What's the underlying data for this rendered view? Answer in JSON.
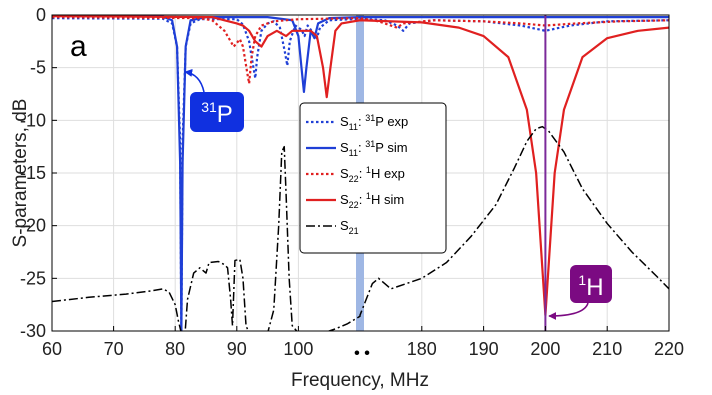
{
  "chart_data": {
    "type": "line",
    "panel_label": "a",
    "xlabel": "Frequency, MHz",
    "ylabel": "S-parameters, dB",
    "ylim": [
      -30,
      0
    ],
    "yticks": [
      "0",
      "-5",
      "-10",
      "-15",
      "-20",
      "-25",
      "-30"
    ],
    "axis_break": {
      "symbol": "• •",
      "left_segment": {
        "xlim": [
          60,
          110
        ],
        "ticks": [
          "60",
          "70",
          "80",
          "90",
          "100"
        ]
      },
      "right_segment": {
        "xlim": [
          170,
          220
        ],
        "ticks": [
          "180",
          "190",
          "200",
          "210",
          "220"
        ]
      }
    },
    "grid": true,
    "legend_position": "center",
    "series": [
      {
        "name": "S11: 31P exp",
        "legend": {
          "base": "S",
          "sub": "11",
          "sup": "31",
          "rest": "P exp"
        },
        "color": "#1f3fd6",
        "style": "dotted",
        "points": [
          [
            60,
            -0.3
          ],
          [
            78,
            -0.35
          ],
          [
            79.5,
            -0.8
          ],
          [
            80.3,
            -3
          ],
          [
            80.8,
            -12
          ],
          [
            81,
            -30
          ],
          [
            81.2,
            -12
          ],
          [
            81.7,
            -3
          ],
          [
            82.5,
            -0.8
          ],
          [
            84,
            -0.4
          ],
          [
            90,
            -0.4
          ],
          [
            91,
            -0.9
          ],
          [
            92,
            -2.5
          ],
          [
            92.7,
            -5
          ],
          [
            93,
            -6
          ],
          [
            93.3,
            -4
          ],
          [
            94,
            -1.5
          ],
          [
            95,
            -0.8
          ],
          [
            96,
            -0.6
          ],
          [
            97,
            -1.2
          ],
          [
            97.8,
            -3.5
          ],
          [
            98.2,
            -4.8
          ],
          [
            98.6,
            -2.5
          ],
          [
            99.5,
            -1
          ],
          [
            100.5,
            -1.4
          ],
          [
            101,
            -2
          ],
          [
            101.5,
            -1
          ],
          [
            102.5,
            -1.8
          ],
          [
            103,
            -2.2
          ],
          [
            103.5,
            -1.2
          ],
          [
            105,
            -0.5
          ],
          [
            110,
            -0.35
          ],
          [
            170,
            -0.35
          ],
          [
            174,
            -0.5
          ],
          [
            176,
            -1
          ],
          [
            177,
            -1.5
          ],
          [
            178,
            -0.8
          ],
          [
            182,
            -0.5
          ],
          [
            190,
            -0.6
          ],
          [
            196,
            -1
          ],
          [
            200,
            -1.5
          ],
          [
            204,
            -1
          ],
          [
            210,
            -0.6
          ],
          [
            220,
            -0.5
          ]
        ]
      },
      {
        "name": "S11: 31P sim",
        "legend": {
          "base": "S",
          "sub": "11",
          "sup": "31",
          "rest": "P sim"
        },
        "color": "#1f3fd6",
        "style": "solid",
        "points": [
          [
            60,
            -0.1
          ],
          [
            78,
            -0.15
          ],
          [
            79.5,
            -0.5
          ],
          [
            80.3,
            -3
          ],
          [
            80.8,
            -14
          ],
          [
            81,
            -30
          ],
          [
            81.2,
            -14
          ],
          [
            81.7,
            -3
          ],
          [
            82.5,
            -0.5
          ],
          [
            85,
            -0.2
          ],
          [
            95,
            -0.2
          ],
          [
            99,
            -0.5
          ],
          [
            100,
            -2
          ],
          [
            100.5,
            -5
          ],
          [
            100.9,
            -7.3
          ],
          [
            101.3,
            -5
          ],
          [
            102,
            -1.5
          ],
          [
            102.6,
            -2.2
          ],
          [
            103.2,
            -0.8
          ],
          [
            105,
            -0.3
          ],
          [
            110,
            -0.2
          ],
          [
            170,
            -0.2
          ],
          [
            190,
            -0.2
          ],
          [
            220,
            -0.2
          ]
        ]
      },
      {
        "name": "S22: 1H exp",
        "legend": {
          "base": "S",
          "sub": "22",
          "sup": "1",
          "rest": "H exp"
        },
        "color": "#e02020",
        "style": "dotted",
        "points": [
          [
            60,
            -0.2
          ],
          [
            84,
            -0.3
          ],
          [
            86,
            -0.5
          ],
          [
            88,
            -1.5
          ],
          [
            89.5,
            -3
          ],
          [
            90.5,
            -2.3
          ],
          [
            91,
            -3
          ],
          [
            91.7,
            -5.5
          ],
          [
            92,
            -6.5
          ],
          [
            92.4,
            -4
          ],
          [
            93,
            -2
          ],
          [
            94,
            -1
          ],
          [
            96,
            -0.6
          ],
          [
            100,
            -0.4
          ],
          [
            110,
            -0.3
          ],
          [
            170,
            -0.3
          ],
          [
            173,
            -0.6
          ],
          [
            175,
            -1
          ],
          [
            176,
            -1.2
          ],
          [
            177,
            -0.8
          ],
          [
            182,
            -0.5
          ],
          [
            190,
            -0.6
          ],
          [
            196,
            -0.8
          ],
          [
            200,
            -1
          ],
          [
            205,
            -0.8
          ],
          [
            212,
            -0.6
          ],
          [
            220,
            -0.5
          ]
        ]
      },
      {
        "name": "S22: 1H sim",
        "legend": {
          "base": "S",
          "sub": "22",
          "sup": "1",
          "rest": "H sim"
        },
        "color": "#e02020",
        "style": "solid",
        "points": [
          [
            60,
            -0.1
          ],
          [
            86,
            -0.2
          ],
          [
            88,
            -0.5
          ],
          [
            90,
            -0.8
          ],
          [
            91,
            -1
          ],
          [
            92,
            -1.5
          ],
          [
            93,
            -2.5
          ],
          [
            94,
            -3
          ],
          [
            95,
            -2
          ],
          [
            96.5,
            -1.5
          ],
          [
            98,
            -2
          ],
          [
            99,
            -1.5
          ],
          [
            100,
            -1.5
          ],
          [
            102,
            -1.5
          ],
          [
            103,
            -2
          ],
          [
            104,
            -5
          ],
          [
            104.6,
            -7.8
          ],
          [
            105.2,
            -5
          ],
          [
            106,
            -1.5
          ],
          [
            107,
            -0.8
          ],
          [
            110,
            -0.5
          ],
          [
            170,
            -0.5
          ],
          [
            180,
            -0.7
          ],
          [
            186,
            -1.2
          ],
          [
            190,
            -2
          ],
          [
            194,
            -4
          ],
          [
            197,
            -9
          ],
          [
            198.5,
            -15
          ],
          [
            199.5,
            -24
          ],
          [
            200,
            -28.5
          ],
          [
            200.5,
            -24
          ],
          [
            201.5,
            -15
          ],
          [
            203,
            -9
          ],
          [
            206,
            -4
          ],
          [
            210,
            -2.2
          ],
          [
            215,
            -1.5
          ],
          [
            220,
            -1.2
          ]
        ]
      },
      {
        "name": "S21",
        "legend": {
          "base": "S",
          "sub": "21",
          "sup": "",
          "rest": ""
        },
        "color": "#000000",
        "style": "dashdot",
        "points": [
          [
            60,
            -27.2
          ],
          [
            66,
            -26.8
          ],
          [
            72,
            -26.5
          ],
          [
            76,
            -26.2
          ],
          [
            78,
            -26
          ],
          [
            79,
            -26.3
          ],
          [
            80,
            -27.5
          ],
          [
            80.5,
            -29
          ],
          [
            81,
            -30.2
          ],
          [
            81.6,
            -30.2
          ],
          [
            82,
            -27
          ],
          [
            83,
            -24.5
          ],
          [
            84,
            -24
          ],
          [
            85,
            -24.5
          ],
          [
            85.5,
            -23.5
          ],
          [
            87,
            -23.4
          ],
          [
            88,
            -23.7
          ],
          [
            88.5,
            -24
          ],
          [
            89,
            -27
          ],
          [
            89.3,
            -29.5
          ],
          [
            89.7,
            -23.3
          ],
          [
            90.5,
            -23.2
          ],
          [
            91,
            -25
          ],
          [
            91.5,
            -29.5
          ],
          [
            92,
            -30.2
          ],
          [
            95,
            -30.2
          ],
          [
            96,
            -28
          ],
          [
            96.8,
            -20
          ],
          [
            97.3,
            -13
          ],
          [
            97.7,
            -12.5
          ],
          [
            98,
            -17
          ],
          [
            98.5,
            -25
          ],
          [
            99,
            -29.5
          ],
          [
            100,
            -30.2
          ],
          [
            104,
            -30.2
          ],
          [
            106,
            -29.8
          ],
          [
            108,
            -29.3
          ],
          [
            110,
            -28.6
          ],
          [
            170,
            -28.5
          ],
          [
            171,
            -27
          ],
          [
            172,
            -25.5
          ],
          [
            173,
            -25
          ],
          [
            174,
            -25.5
          ],
          [
            175,
            -26
          ],
          [
            176,
            -25.8
          ],
          [
            180,
            -25
          ],
          [
            184,
            -23.5
          ],
          [
            188,
            -21
          ],
          [
            192,
            -18
          ],
          [
            195,
            -14.5
          ],
          [
            197,
            -12
          ],
          [
            198.5,
            -10.8
          ],
          [
            199.5,
            -10.6
          ],
          [
            200.5,
            -11
          ],
          [
            203,
            -13
          ],
          [
            206,
            -16.5
          ],
          [
            210,
            -19.8
          ],
          [
            214,
            -22.5
          ],
          [
            218,
            -24.8
          ],
          [
            220,
            -26
          ]
        ]
      }
    ],
    "annotations": [
      {
        "sup": "31",
        "base": "P",
        "box_color": "#1030e0",
        "arrow_to": {
          "x": 81,
          "y": -4.5
        }
      },
      {
        "sup": "1",
        "base": "H",
        "box_color": "#7b0a82",
        "arrow_to": {
          "x": 200,
          "y": -28.5
        }
      }
    ],
    "markers": [
      {
        "x": 200,
        "color": "#7b2a9a",
        "note": "1H resonance line"
      }
    ],
    "break_band_color": "#9fb7e4"
  }
}
